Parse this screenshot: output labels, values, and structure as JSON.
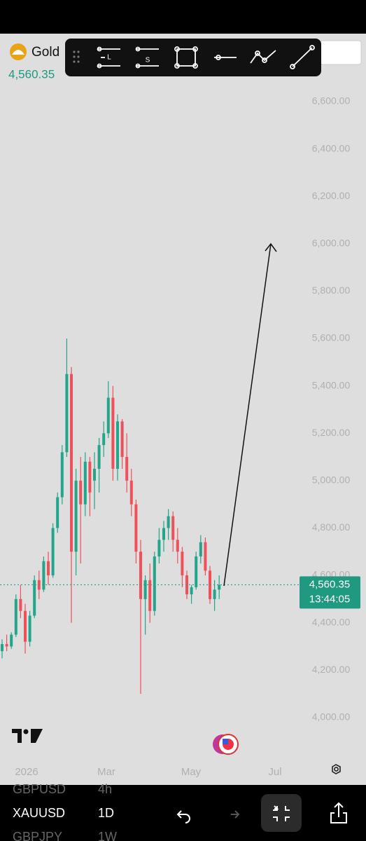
{
  "header": {
    "symbol": "Gold"
  },
  "toolbar": {
    "long_label": "L",
    "short_label": "S"
  },
  "chart_data": {
    "type": "candlestick",
    "open": [
      4280,
      4310,
      4300,
      4350,
      4500,
      4450,
      4320,
      4430,
      4580,
      4540,
      4660,
      4600,
      4800,
      4930,
      5120,
      5450,
      4700,
      5000,
      4900,
      5080,
      5000,
      5050,
      5150,
      5200,
      5350,
      5050,
      5250,
      5100,
      5000,
      4900,
      4700,
      4500,
      4580,
      4450,
      4680,
      4750,
      4800,
      4850,
      4750,
      4700,
      4600,
      4520,
      4550,
      4680,
      4740,
      4620,
      4500,
      4540
    ],
    "high": [
      4330,
      4350,
      4360,
      4520,
      4560,
      4480,
      4450,
      4600,
      4620,
      4680,
      4700,
      4820,
      4950,
      5150,
      5600,
      5480,
      5050,
      5100,
      5120,
      5100,
      5120,
      5180,
      5250,
      5420,
      5400,
      5280,
      5260,
      5200,
      5050,
      4920,
      4750,
      4600,
      4650,
      4700,
      4800,
      4830,
      4880,
      4870,
      4800,
      4720,
      4620,
      4560,
      4700,
      4770,
      4760,
      4640,
      4580,
      4600
    ],
    "low": [
      4250,
      4280,
      4290,
      4340,
      4420,
      4270,
      4300,
      4420,
      4500,
      4530,
      4560,
      4590,
      4780,
      4900,
      5100,
      4400,
      4600,
      4650,
      4850,
      4850,
      4880,
      4950,
      5100,
      5180,
      5000,
      5000,
      5050,
      4950,
      4850,
      4650,
      4100,
      4350,
      4400,
      4430,
      4650,
      4700,
      4750,
      4700,
      4650,
      4550,
      4500,
      4480,
      4540,
      4650,
      4600,
      4480,
      4450,
      4500
    ],
    "close": [
      4310,
      4300,
      4350,
      4500,
      4450,
      4320,
      4430,
      4580,
      4540,
      4660,
      4600,
      4800,
      4930,
      5120,
      5450,
      4700,
      5000,
      4900,
      5080,
      4950,
      5050,
      5150,
      5200,
      5350,
      5050,
      5250,
      5100,
      5000,
      4900,
      4700,
      4500,
      4580,
      4450,
      4680,
      4750,
      4800,
      4850,
      4750,
      4700,
      4600,
      4520,
      4550,
      4680,
      4740,
      4620,
      4500,
      4540,
      4560
    ],
    "up_color": "#22a58a",
    "down_color": "#f0505a",
    "ylim": [
      3819,
      6887
    ],
    "yticks": [
      {
        "value": 4000,
        "label": "4,000.00"
      },
      {
        "value": 4200,
        "label": "4,200.00"
      },
      {
        "value": 4400,
        "label": "4,400.00"
      },
      {
        "value": 4600,
        "label": "4,600.00"
      },
      {
        "value": 4800,
        "label": "4,800.00"
      },
      {
        "value": 5000,
        "label": "5,000.00"
      },
      {
        "value": 5200,
        "label": "5,200.00"
      },
      {
        "value": 5400,
        "label": "5,400.00"
      },
      {
        "value": 5600,
        "label": "5,600.00"
      },
      {
        "value": 5800,
        "label": "5,800.00"
      },
      {
        "value": 6000,
        "label": "6,000.00"
      },
      {
        "value": 6200,
        "label": "6,200.00"
      },
      {
        "value": 6400,
        "label": "6,400.00"
      },
      {
        "value": 6600,
        "label": "6,600.00"
      }
    ],
    "x_labels": [
      "2026",
      "Mar",
      "May",
      "Jul"
    ],
    "last_price": {
      "value": 4560.35,
      "label": "4,560.35"
    },
    "countdown": "13:44:05"
  },
  "watchlist": [
    {
      "symbol": "GBPUSD",
      "interval": "4h"
    },
    {
      "symbol": "XAUUSD",
      "interval": "1D"
    },
    {
      "symbol": "GBPJPY",
      "interval": "1W"
    }
  ]
}
